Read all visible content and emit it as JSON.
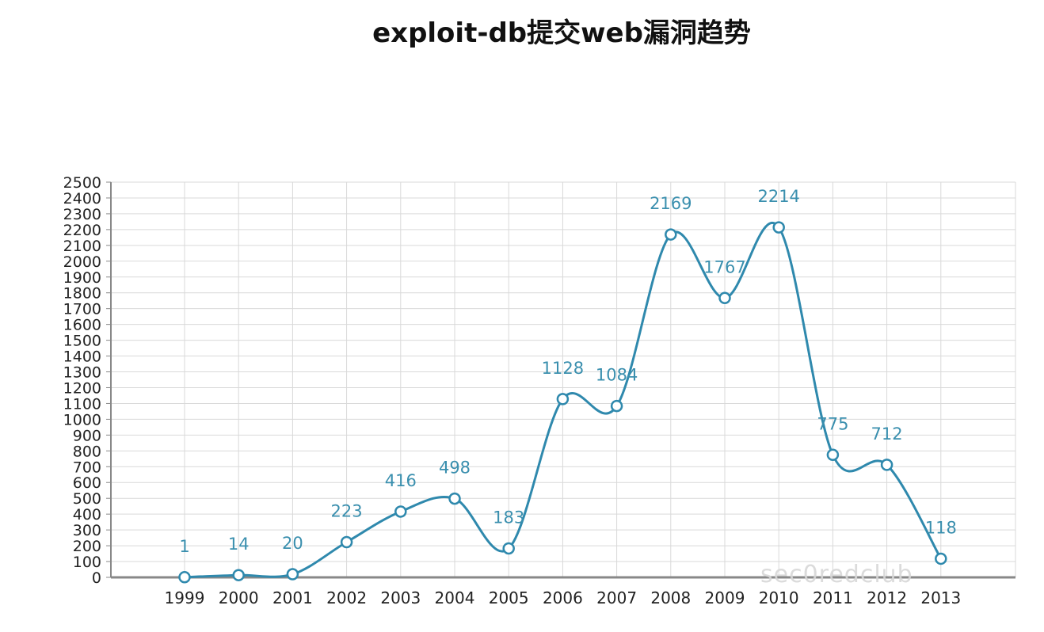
{
  "page": {
    "title": "exploit-db提交web漏洞趋势"
  },
  "watermark": "sec0redclub",
  "colors": {
    "line": "#2f89ad",
    "marker_fill": "#ffffff",
    "grid": "#d9d9d9",
    "axis": "#888888",
    "label": "#3a8fae"
  },
  "chart_data": {
    "type": "line",
    "title": "exploit-db提交web漏洞趋势",
    "xlabel": "",
    "ylabel": "",
    "categories": [
      "1999",
      "2000",
      "2001",
      "2002",
      "2003",
      "2004",
      "2005",
      "2006",
      "2007",
      "2008",
      "2009",
      "2010",
      "2011",
      "2012",
      "2013"
    ],
    "series": [
      {
        "values": [
          1,
          14,
          20,
          223,
          416,
          498,
          183,
          1128,
          1084,
          2169,
          1767,
          2214,
          775,
          712,
          118
        ]
      }
    ],
    "ylim": [
      0,
      2500
    ],
    "ytick_step": 100,
    "grid": true,
    "smooth": true,
    "markers": "circle"
  }
}
